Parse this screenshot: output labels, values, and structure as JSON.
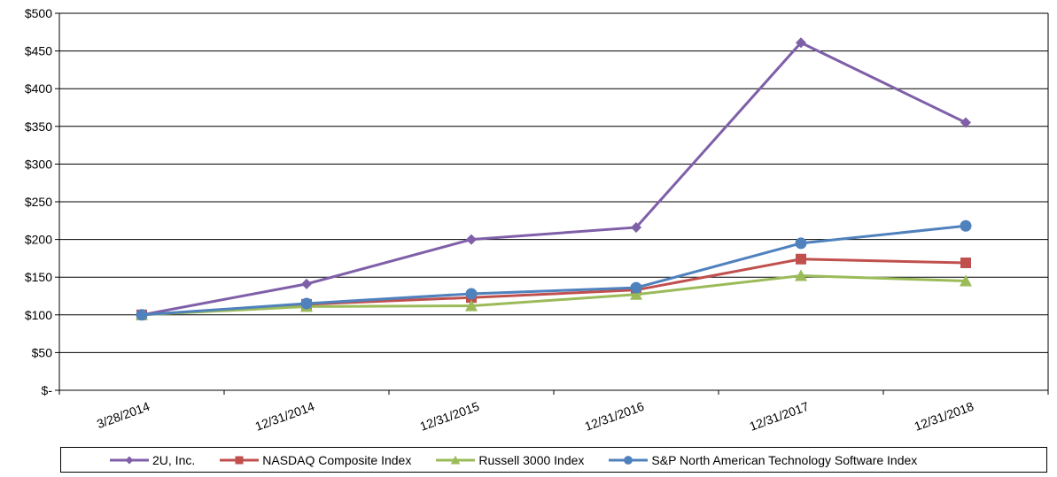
{
  "chart_data": {
    "type": "line",
    "categories": [
      "3/28/2014",
      "12/31/2014",
      "12/31/2015",
      "12/31/2016",
      "12/31/2017",
      "12/31/2018"
    ],
    "ylim": [
      0,
      500
    ],
    "yticks": [
      0,
      50,
      100,
      150,
      200,
      250,
      300,
      350,
      400,
      450,
      500
    ],
    "ytick_labels": [
      "$-",
      "$50",
      "$100",
      "$150",
      "$200",
      "$250",
      "$300",
      "$350",
      "$400",
      "$450",
      "$500"
    ],
    "grid": "horizontal",
    "legend_placement": "bottom",
    "series": [
      {
        "name": "2U, Inc.",
        "color": "#7f5fa8",
        "marker": "diamond",
        "values": [
          100,
          141,
          200,
          216,
          461,
          355
        ]
      },
      {
        "name": "NASDAQ Composite Index",
        "color": "#c0504d",
        "marker": "square",
        "values": [
          100,
          114,
          123,
          133,
          174,
          169
        ]
      },
      {
        "name": "Russell 3000 Index",
        "color": "#9bbb59",
        "marker": "triangle",
        "values": [
          100,
          111,
          112,
          127,
          152,
          145
        ]
      },
      {
        "name": "S&P North American Technology Software Index",
        "color": "#4f81bd",
        "marker": "circle",
        "values": [
          100,
          115,
          128,
          136,
          195,
          218
        ]
      }
    ]
  }
}
